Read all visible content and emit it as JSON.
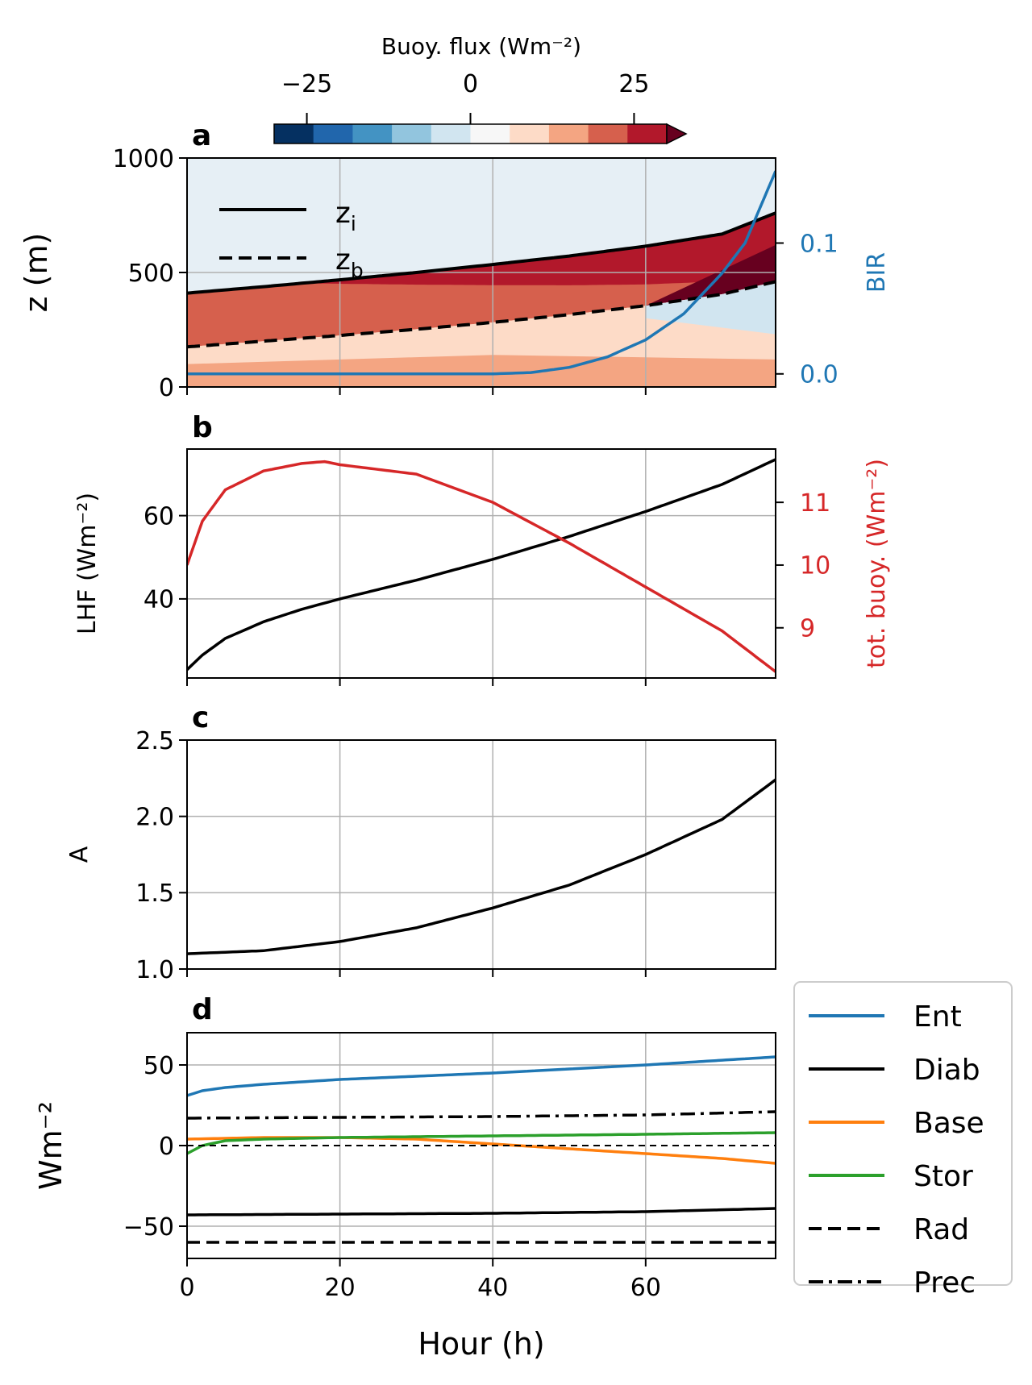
{
  "colors": {
    "blue": "#1f77b4",
    "red": "#d62728",
    "orange": "#ff7f0e",
    "green": "#2ca02c",
    "black": "#000000",
    "grid": "#b0b0b0",
    "colorbar": [
      "#053061",
      "#2166ac",
      "#4393c3",
      "#92c5de",
      "#d1e5f0",
      "#f7f7f7",
      "#fddbc7",
      "#f4a582",
      "#d6604d",
      "#b2182b",
      "#67001f"
    ]
  },
  "x_axis": {
    "label": "Hour (h)",
    "ticks": [
      "0",
      "20",
      "40",
      "60"
    ],
    "range": [
      0,
      77
    ]
  },
  "colorbar": {
    "label": "Buoy. flux (Wm⁻²)",
    "ticks": [
      "−25",
      "0",
      "25"
    ],
    "range": [
      -30,
      30
    ],
    "extend": "max"
  },
  "chart_data": [
    {
      "panel": "a",
      "type": "area",
      "ylabel": "z (m)",
      "ylim": [
        0,
        1000
      ],
      "yticks": [
        "0",
        "500",
        "1000"
      ],
      "y2label": "BIR",
      "y2lim": [
        -0.01,
        0.165
      ],
      "y2ticks": [
        "0.0",
        "0.1"
      ],
      "grid": true,
      "legend_position": "upper-left",
      "series": [
        {
          "name": "zi",
          "style": "solid",
          "x": [
            0,
            10,
            20,
            30,
            40,
            50,
            60,
            70,
            77
          ],
          "y": [
            410,
            438,
            468,
            500,
            535,
            572,
            615,
            668,
            760
          ]
        },
        {
          "name": "zb",
          "style": "dashed",
          "x": [
            0,
            10,
            20,
            30,
            40,
            50,
            60,
            70,
            77
          ],
          "y": [
            175,
            200,
            225,
            252,
            282,
            316,
            355,
            405,
            460
          ]
        },
        {
          "axis": "right",
          "color": "blue",
          "x": [
            0,
            20,
            40,
            45,
            50,
            55,
            60,
            65,
            70,
            73,
            77
          ],
          "y": [
            0.0,
            0.0,
            0.0,
            0.001,
            0.005,
            0.013,
            0.026,
            0.046,
            0.077,
            0.1,
            0.155
          ]
        }
      ]
    },
    {
      "panel": "b",
      "type": "line",
      "ylabel": "LHF (Wm⁻²)",
      "ylim": [
        21,
        76
      ],
      "yticks": [
        "40",
        "60"
      ],
      "y2label": "tot. buoy.  (Wm⁻²)",
      "y2lim": [
        8.2,
        11.85
      ],
      "y2ticks": [
        "9",
        "10",
        "11"
      ],
      "grid": true,
      "series": [
        {
          "color": "black",
          "x": [
            0,
            2,
            5,
            10,
            15,
            20,
            30,
            40,
            50,
            60,
            70,
            77
          ],
          "y": [
            23,
            26.5,
            30.5,
            34.5,
            37.5,
            40,
            44.5,
            49.5,
            55,
            61,
            67.5,
            73.5
          ]
        },
        {
          "axis": "right",
          "color": "red",
          "x": [
            0,
            2,
            5,
            10,
            15,
            18,
            20,
            30,
            40,
            50,
            60,
            70,
            77
          ],
          "y": [
            10.0,
            10.7,
            11.2,
            11.5,
            11.62,
            11.65,
            11.6,
            11.45,
            11.0,
            10.35,
            9.65,
            8.95,
            8.3
          ]
        }
      ]
    },
    {
      "panel": "c",
      "type": "line",
      "ylabel": "A",
      "ylim": [
        1.0,
        2.5
      ],
      "yticks": [
        "1.0",
        "1.5",
        "2.0",
        "2.5"
      ],
      "grid": true,
      "series": [
        {
          "color": "black",
          "x": [
            0,
            10,
            20,
            30,
            40,
            50,
            60,
            70,
            77
          ],
          "y": [
            1.1,
            1.12,
            1.18,
            1.27,
            1.4,
            1.55,
            1.75,
            1.98,
            2.24
          ]
        }
      ]
    },
    {
      "panel": "d",
      "type": "line",
      "ylabel": "Wm⁻²",
      "ylim": [
        -70,
        70
      ],
      "yticks": [
        "−50",
        "0",
        "50"
      ],
      "grid": true,
      "legend_position": "right",
      "series": [
        {
          "name": "Ent",
          "color": "blue",
          "style": "solid",
          "x": [
            0,
            2,
            5,
            10,
            20,
            40,
            60,
            77
          ],
          "y": [
            31,
            34,
            36,
            38,
            41,
            45,
            50,
            55
          ]
        },
        {
          "name": "Diab",
          "color": "black",
          "style": "solid",
          "x": [
            0,
            20,
            40,
            60,
            77
          ],
          "y": [
            -43,
            -42.5,
            -42,
            -41,
            -39
          ]
        },
        {
          "name": "Base",
          "color": "orange",
          "style": "solid",
          "x": [
            0,
            10,
            20,
            30,
            40,
            50,
            60,
            70,
            77
          ],
          "y": [
            4,
            5,
            5,
            4,
            1,
            -2,
            -5,
            -8,
            -11
          ]
        },
        {
          "name": "Stor",
          "color": "green",
          "style": "solid",
          "x": [
            0,
            2,
            5,
            10,
            20,
            40,
            60,
            77
          ],
          "y": [
            -5,
            0,
            3,
            4,
            5,
            6,
            7,
            8
          ]
        },
        {
          "name": "Rad",
          "color": "black",
          "style": "dashed",
          "x": [
            0,
            77
          ],
          "y": [
            -60,
            -60
          ]
        },
        {
          "name": "Prec",
          "color": "black",
          "style": "dashdot",
          "x": [
            0,
            20,
            40,
            60,
            77
          ],
          "y": [
            17,
            17.5,
            18,
            19,
            21
          ]
        },
        {
          "name": "",
          "color": "black",
          "style": "thin-dashed",
          "x": [
            0,
            77
          ],
          "y": [
            0,
            0
          ]
        }
      ]
    }
  ],
  "panels_text": {
    "a": {
      "letter": "a",
      "legend_zi": "z",
      "legend_zi_sub": "i",
      "legend_zb": "z",
      "legend_zb_sub": "b"
    },
    "b": {
      "letter": "b"
    },
    "c": {
      "letter": "c"
    },
    "d": {
      "letter": "d"
    }
  }
}
